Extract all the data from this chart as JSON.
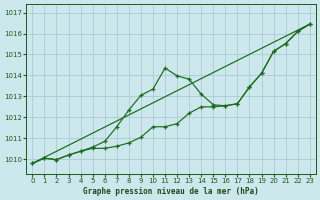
{
  "xlabel": "Graphe pression niveau de la mer (hPa)",
  "bg_color": "#cce8ed",
  "grid_color": "#aaccd4",
  "line_color": "#1a6b1a",
  "x_ticks": [
    0,
    1,
    2,
    3,
    4,
    5,
    6,
    7,
    8,
    9,
    10,
    11,
    12,
    13,
    14,
    15,
    16,
    17,
    18,
    19,
    20,
    21,
    22,
    23
  ],
  "y_ticks": [
    1010,
    1011,
    1012,
    1013,
    1014,
    1015,
    1016,
    1017
  ],
  "ylim": [
    1009.3,
    1017.4
  ],
  "xlim": [
    -0.5,
    23.5
  ],
  "line1_x": [
    0,
    1,
    2,
    3,
    4,
    5,
    6,
    7,
    8,
    9,
    10,
    11,
    12,
    13,
    14,
    15,
    16,
    17,
    18,
    19,
    20,
    21,
    22,
    23
  ],
  "line1_y": [
    1009.8,
    1010.05,
    1009.98,
    1010.2,
    1010.38,
    1010.58,
    1010.85,
    1011.55,
    1012.35,
    1013.05,
    1013.35,
    1014.35,
    1013.98,
    1013.82,
    1013.1,
    1012.6,
    1012.55,
    1012.65,
    1013.45,
    1014.1,
    1015.15,
    1015.52,
    1016.1,
    1016.45
  ],
  "line2_x": [
    0,
    1,
    2,
    3,
    4,
    5,
    6,
    7,
    8,
    9,
    10,
    11,
    12,
    13,
    14,
    15,
    16,
    17,
    18,
    19,
    20,
    21,
    22,
    23
  ],
  "line2_y": [
    1009.8,
    1010.05,
    1009.98,
    1010.2,
    1010.38,
    1010.52,
    1010.52,
    1010.62,
    1010.78,
    1011.05,
    1011.55,
    1011.55,
    1011.7,
    1012.2,
    1012.5,
    1012.5,
    1012.55,
    1012.65,
    1013.45,
    1014.1,
    1015.15,
    1015.52,
    1016.1,
    1016.45
  ],
  "trend_x": [
    0,
    23
  ],
  "trend_y": [
    1009.8,
    1016.45
  ]
}
